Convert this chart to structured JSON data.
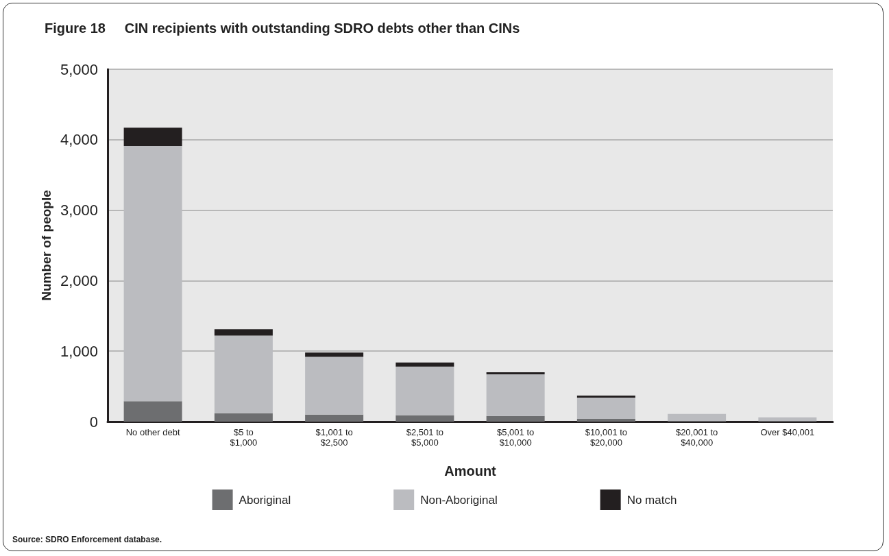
{
  "chart_data": {
    "type": "bar",
    "title": "Figure 18     CIN recipients with outstanding SDRO debts other than CINs",
    "xlabel": "Amount",
    "ylabel": "Number of people",
    "categories": [
      "No other debt",
      "$5 to\n$1,000",
      "$1,001 to\n$2,500",
      "$2,501 to\n$5,000",
      "$5,001 to\n$10,000",
      "$10,001 to\n$20,000",
      "$20,001 to\n$40,000",
      "Over $40,001"
    ],
    "stacked": true,
    "series": [
      {
        "name": "Aboriginal",
        "color": "#6d6e70",
        "values": [
          290,
          120,
          100,
          90,
          80,
          40,
          10,
          10
        ]
      },
      {
        "name": "Non-Aboriginal",
        "color": "#bbbcc0",
        "values": [
          3620,
          1100,
          820,
          690,
          590,
          300,
          100,
          50
        ]
      },
      {
        "name": "No match",
        "color": "#231f20",
        "values": [
          260,
          90,
          60,
          60,
          30,
          30,
          0,
          0
        ]
      }
    ],
    "ylim": [
      0,
      5000
    ],
    "yticks": [
      0,
      {
        "value": 1000,
        "label": "1,000"
      },
      {
        "value": 2000,
        "label": "2,000"
      },
      {
        "value": 3000,
        "label": "3,000"
      },
      {
        "value": 4000,
        "label": "4,000"
      },
      {
        "value": 5000,
        "label": "5,000"
      }
    ],
    "grid": "y",
    "legend": "bottom",
    "annotations": [
      "Source: SDRO Enforcement database."
    ]
  }
}
